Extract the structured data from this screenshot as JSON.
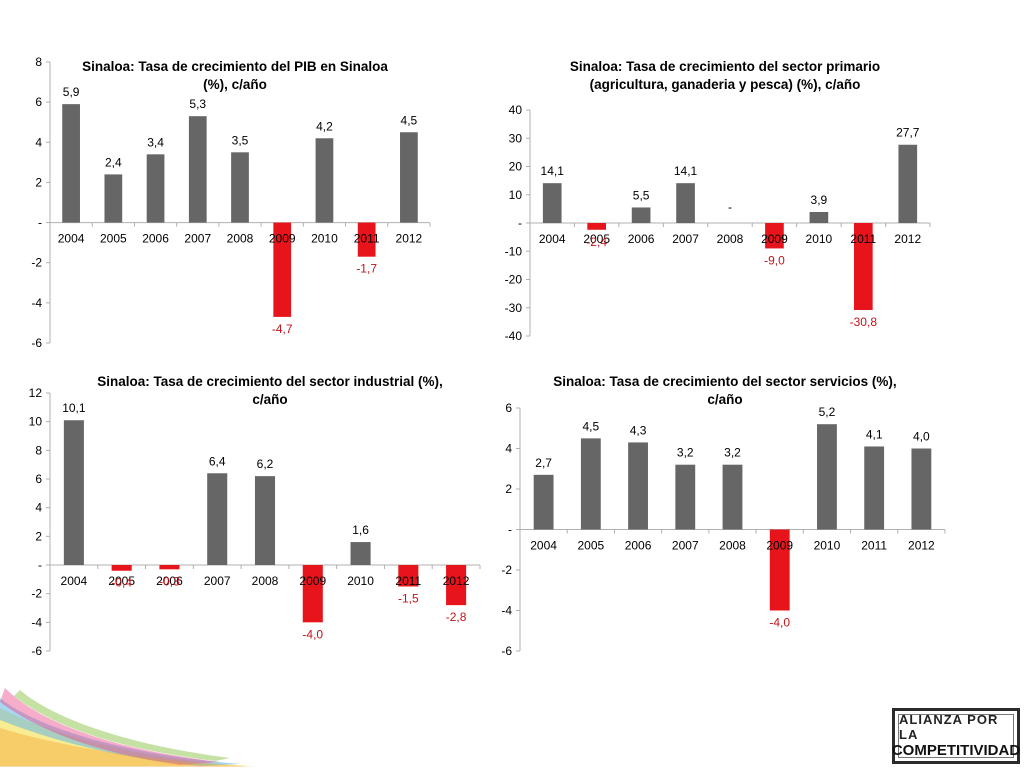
{
  "colors": {
    "positive": "#666666",
    "negative": "#e8141b",
    "negative_label": "#c0141a",
    "axis": "#b0b0b0"
  },
  "logo": {
    "line1": "ALIANZA POR LA",
    "line2": "COMPETITIVIDAD"
  },
  "chart_data": [
    {
      "type": "bar",
      "title": "Sinaloa: Tasa de crecimiento del PIB en Sinaloa (%), c/año",
      "title_lines": [
        "Sinaloa: Tasa de crecimiento del PIB en Sinaloa",
        "(%), c/año"
      ],
      "categories": [
        "2004",
        "2005",
        "2006",
        "2007",
        "2008",
        "2009",
        "2010",
        "2011",
        "2012"
      ],
      "values": [
        5.9,
        2.4,
        3.4,
        5.3,
        3.5,
        -4.7,
        4.2,
        -1.7,
        4.5
      ],
      "value_labels": [
        "5,9",
        "2,4",
        "3,4",
        "5,3",
        "3,5",
        "-4,7",
        "4,2",
        "-1,7",
        "4,5"
      ],
      "ylim": [
        -6,
        8
      ],
      "yticks": [
        8,
        6,
        4,
        2,
        0,
        -2,
        -4,
        -6
      ],
      "ytick_labels": [
        "8",
        "6",
        "4",
        "2",
        "-",
        "-2",
        "-4",
        "-6"
      ],
      "xlabel": "",
      "ylabel": "",
      "grid": false
    },
    {
      "type": "bar",
      "title": "Sinaloa: Tasa de crecimiento  del sector primario (agricultura, ganaderia y pesca) (%), c/año",
      "title_lines": [
        "Sinaloa: Tasa de crecimiento  del sector primario",
        "(agricultura, ganaderia y pesca) (%), c/año"
      ],
      "categories": [
        "2004",
        "2005",
        "2006",
        "2007",
        "2008",
        "2009",
        "2010",
        "2011",
        "2012"
      ],
      "values": [
        14.1,
        -2.4,
        5.5,
        14.1,
        0,
        -9.0,
        3.9,
        -30.8,
        27.7
      ],
      "value_labels": [
        "14,1",
        "-2,4",
        "5,5",
        "14,1",
        "-",
        "-9,0",
        "3,9",
        "-30,8",
        "27,7"
      ],
      "ylim": [
        -40,
        40
      ],
      "yticks": [
        40,
        30,
        20,
        10,
        0,
        -10,
        -20,
        -30,
        -40
      ],
      "ytick_labels": [
        "40",
        "30",
        "20",
        "10",
        "-",
        "-10",
        "-20",
        "-30",
        "-40"
      ],
      "xlabel": "",
      "ylabel": "",
      "grid": false
    },
    {
      "type": "bar",
      "title": "Sinaloa: Tasa de crecimiento del sector industrial (%), c/año",
      "title_lines": [
        "Sinaloa: Tasa de crecimiento del sector industrial (%),",
        "c/año"
      ],
      "categories": [
        "2004",
        "2005",
        "2006",
        "2007",
        "2008",
        "2009",
        "2010",
        "2011",
        "2012"
      ],
      "values": [
        10.1,
        -0.4,
        -0.3,
        6.4,
        6.2,
        -4.0,
        1.6,
        -1.5,
        -2.8
      ],
      "value_labels": [
        "10,1",
        "-0,4",
        "-0,3",
        "6,4",
        "6,2",
        "-4,0",
        "1,6",
        "-1,5",
        "-2,8"
      ],
      "ylim": [
        -6,
        12
      ],
      "yticks": [
        12,
        10,
        8,
        6,
        4,
        2,
        0,
        -2,
        -4,
        -6
      ],
      "ytick_labels": [
        "12",
        "10",
        "8",
        "6",
        "4",
        "2",
        "-",
        "-2",
        "-4",
        "-6"
      ],
      "xlabel": "",
      "ylabel": "",
      "grid": false
    },
    {
      "type": "bar",
      "title": "Sinaloa: Tasa de crecimiento del sector servicios (%), c/año",
      "title_lines": [
        "Sinaloa: Tasa de crecimiento del sector servicios (%),",
        "c/año"
      ],
      "categories": [
        "2004",
        "2005",
        "2006",
        "2007",
        "2008",
        "2009",
        "2010",
        "2011",
        "2012"
      ],
      "values": [
        2.7,
        4.5,
        4.3,
        3.2,
        3.2,
        -4.0,
        5.2,
        4.1,
        4.0
      ],
      "value_labels": [
        "2,7",
        "4,5",
        "4,3",
        "3,2",
        "3,2",
        "-4,0",
        "5,2",
        "4,1",
        "4,0"
      ],
      "ylim": [
        -6,
        6
      ],
      "yticks": [
        6,
        4,
        2,
        0,
        -2,
        -4,
        -6
      ],
      "ytick_labels": [
        "6",
        "4",
        "2",
        "-",
        "-2",
        "-4",
        "-6"
      ],
      "xlabel": "",
      "ylabel": "",
      "grid": false
    }
  ]
}
